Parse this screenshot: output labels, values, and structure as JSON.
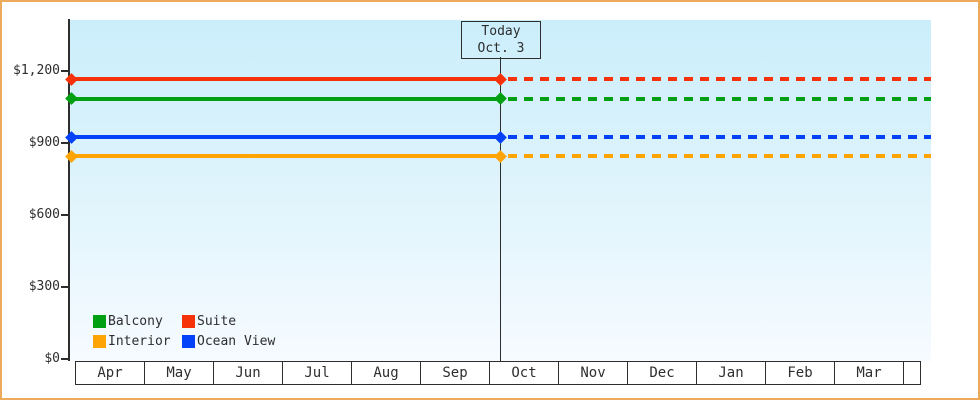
{
  "window": {
    "background_color": "#ffffff",
    "border_color": "#ebaa5e"
  },
  "chart_data": {
    "type": "line",
    "title": "",
    "x_categories": [
      "Apr",
      "May",
      "Jun",
      "Jul",
      "Aug",
      "Sep",
      "Oct",
      "Nov",
      "Dec",
      "Jan",
      "Feb",
      "Mar"
    ],
    "y_axis": {
      "ticks": [
        {
          "label": "$1,200",
          "value": 1200
        },
        {
          "label": "$900",
          "value": 900
        },
        {
          "label": "$600",
          "value": 600
        },
        {
          "label": "$300",
          "value": 300
        },
        {
          "label": "$0",
          "value": 0
        }
      ],
      "range": [
        0,
        1412
      ],
      "grid": false
    },
    "series": [
      {
        "name": "Suite",
        "color": "#f5320a",
        "value": 1165
      },
      {
        "name": "Balcony",
        "color": "#00a012",
        "value": 1085
      },
      {
        "name": "Ocean View",
        "color": "#0442fa",
        "value": 925
      },
      {
        "name": "Interior",
        "color": "#ffa405",
        "value": 845
      }
    ],
    "line_style": {
      "solid_until": "Oct. 3",
      "dashed_after": "Oct. 3",
      "markers": "diamond at axis start and at today line"
    },
    "annotation": {
      "line1": "Today",
      "line2": "Oct. 3",
      "position": "vertical line at Oct 3"
    },
    "legend": {
      "position": "bottom-left",
      "items": [
        "Balcony",
        "Suite",
        "Interior",
        "Ocean View"
      ]
    }
  }
}
